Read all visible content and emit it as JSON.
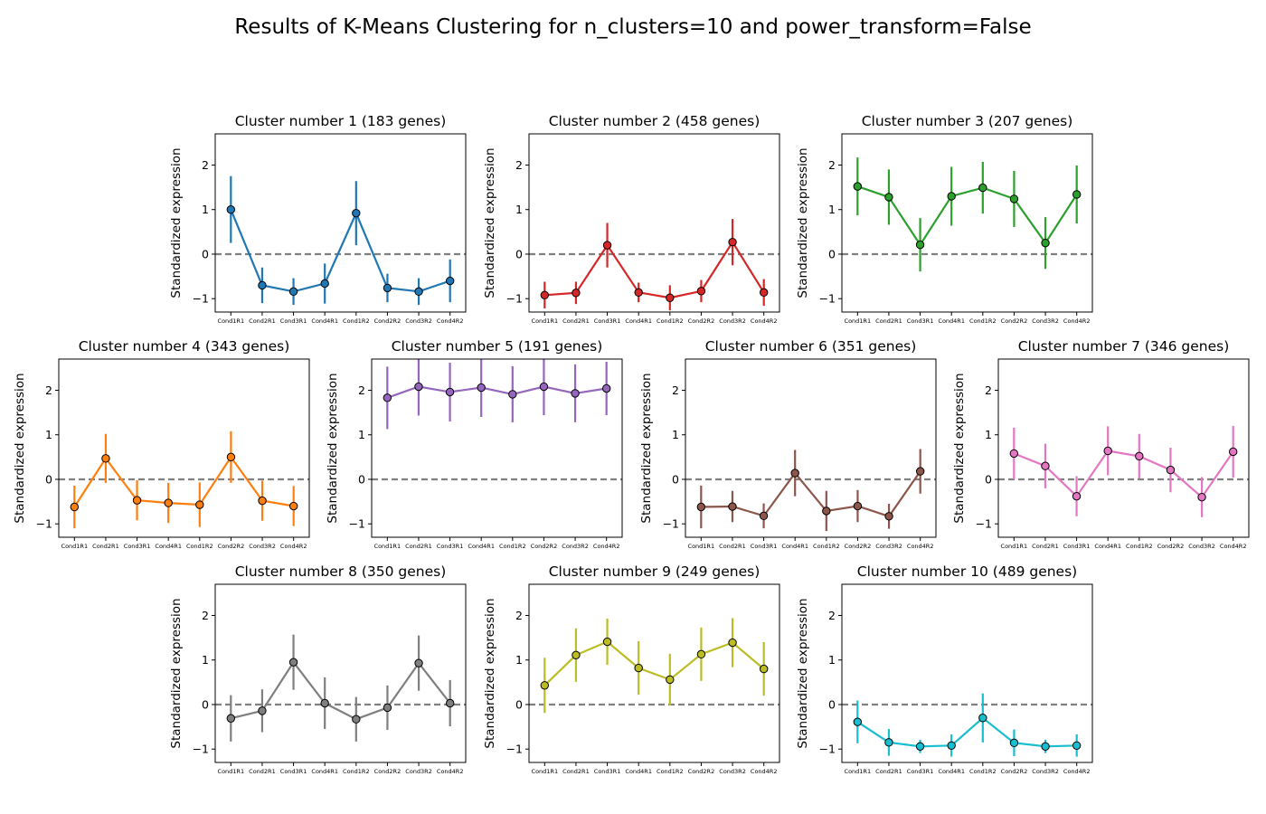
{
  "figure": {
    "title": "Results of K-Means Clustering for n_clusters=10 and power_transform=False"
  },
  "chart_data": [
    {
      "type": "line",
      "title": "Cluster number 1 (183 genes)",
      "color": "#1f77b4",
      "ylabel": "Standardized expression",
      "categories": [
        "Cond1R1",
        "Cond2R1",
        "Cond3R1",
        "Cond4R1",
        "Cond1R2",
        "Cond2R2",
        "Cond3R2",
        "Cond4R2"
      ],
      "values": [
        1.0,
        -0.7,
        -0.84,
        -0.66,
        0.92,
        -0.76,
        -0.84,
        -0.6
      ],
      "error": [
        0.75,
        0.4,
        0.3,
        0.45,
        0.72,
        0.32,
        0.3,
        0.48
      ],
      "ylim": [
        -1.3,
        2.7
      ],
      "yticks": [
        -1,
        0,
        1,
        2
      ],
      "reference_line": 0
    },
    {
      "type": "line",
      "title": "Cluster number 2 (458 genes)",
      "color": "#d62728",
      "ylabel": "Standardized expression",
      "categories": [
        "Cond1R1",
        "Cond2R1",
        "Cond3R1",
        "Cond4R1",
        "Cond1R2",
        "Cond2R2",
        "Cond3R2",
        "Cond4R2"
      ],
      "values": [
        -0.92,
        -0.87,
        0.2,
        -0.86,
        -0.98,
        -0.83,
        0.27,
        -0.86
      ],
      "error": [
        0.3,
        0.25,
        0.5,
        0.22,
        0.28,
        0.25,
        0.52,
        0.3
      ],
      "ylim": [
        -1.3,
        2.7
      ],
      "yticks": [
        -1,
        0,
        1,
        2
      ],
      "reference_line": 0
    },
    {
      "type": "line",
      "title": "Cluster number 3 (207 genes)",
      "color": "#2ca02c",
      "ylabel": "Standardized expression",
      "categories": [
        "Cond1R1",
        "Cond2R1",
        "Cond3R1",
        "Cond4R1",
        "Cond1R2",
        "Cond2R2",
        "Cond3R2",
        "Cond4R2"
      ],
      "values": [
        1.52,
        1.28,
        0.21,
        1.3,
        1.49,
        1.24,
        0.25,
        1.34
      ],
      "error": [
        0.65,
        0.62,
        0.6,
        0.66,
        0.58,
        0.63,
        0.58,
        0.65
      ],
      "ylim": [
        -1.3,
        2.7
      ],
      "yticks": [
        -1,
        0,
        1,
        2
      ],
      "reference_line": 0
    },
    {
      "type": "line",
      "title": "Cluster number 4 (343 genes)",
      "color": "#ff7f0e",
      "ylabel": "Standardized expression",
      "categories": [
        "Cond1R1",
        "Cond2R1",
        "Cond3R1",
        "Cond4R1",
        "Cond1R2",
        "Cond2R2",
        "Cond3R2",
        "Cond4R2"
      ],
      "values": [
        -0.62,
        0.47,
        -0.47,
        -0.53,
        -0.57,
        0.5,
        -0.48,
        -0.6
      ],
      "error": [
        0.48,
        0.55,
        0.45,
        0.45,
        0.5,
        0.58,
        0.45,
        0.45
      ],
      "ylim": [
        -1.3,
        2.7
      ],
      "yticks": [
        -1,
        0,
        1,
        2
      ],
      "reference_line": 0
    },
    {
      "type": "line",
      "title": "Cluster number 5 (191 genes)",
      "color": "#9467bd",
      "ylabel": "Standardized expression",
      "categories": [
        "Cond1R1",
        "Cond2R1",
        "Cond3R1",
        "Cond4R1",
        "Cond1R2",
        "Cond2R2",
        "Cond3R2",
        "Cond4R2"
      ],
      "values": [
        1.83,
        2.08,
        1.96,
        2.06,
        1.91,
        2.08,
        1.93,
        2.04
      ],
      "error": [
        0.7,
        0.65,
        0.66,
        0.66,
        0.63,
        0.64,
        0.65,
        0.6
      ],
      "ylim": [
        -1.3,
        2.7
      ],
      "yticks": [
        -1,
        0,
        1,
        2
      ],
      "reference_line": 0
    },
    {
      "type": "line",
      "title": "Cluster number 6 (351 genes)",
      "color": "#8c564b",
      "ylabel": "Standardized expression",
      "categories": [
        "Cond1R1",
        "Cond2R1",
        "Cond3R1",
        "Cond4R1",
        "Cond1R2",
        "Cond2R2",
        "Cond3R2",
        "Cond4R2"
      ],
      "values": [
        -0.62,
        -0.61,
        -0.82,
        0.14,
        -0.71,
        -0.6,
        -0.83,
        0.18
      ],
      "error": [
        0.48,
        0.35,
        0.28,
        0.52,
        0.45,
        0.36,
        0.28,
        0.5
      ],
      "ylim": [
        -1.3,
        2.7
      ],
      "yticks": [
        -1,
        0,
        1,
        2
      ],
      "reference_line": 0
    },
    {
      "type": "line",
      "title": "Cluster number 7 (346 genes)",
      "color": "#e377c2",
      "ylabel": "Standardized expression",
      "categories": [
        "Cond1R1",
        "Cond2R1",
        "Cond3R1",
        "Cond4R1",
        "Cond1R2",
        "Cond2R2",
        "Cond3R2",
        "Cond4R2"
      ],
      "values": [
        0.58,
        0.3,
        -0.38,
        0.64,
        0.52,
        0.21,
        -0.4,
        0.62
      ],
      "error": [
        0.58,
        0.5,
        0.45,
        0.55,
        0.5,
        0.5,
        0.45,
        0.58
      ],
      "ylim": [
        -1.3,
        2.7
      ],
      "yticks": [
        -1,
        0,
        1,
        2
      ],
      "reference_line": 0
    },
    {
      "type": "line",
      "title": "Cluster number 8 (350 genes)",
      "color": "#7f7f7f",
      "ylabel": "Standardized expression",
      "categories": [
        "Cond1R1",
        "Cond2R1",
        "Cond3R1",
        "Cond4R1",
        "Cond1R2",
        "Cond2R2",
        "Cond3R2",
        "Cond4R2"
      ],
      "values": [
        -0.31,
        -0.14,
        0.95,
        0.03,
        -0.33,
        -0.07,
        0.93,
        0.03
      ],
      "error": [
        0.52,
        0.48,
        0.62,
        0.58,
        0.5,
        0.5,
        0.62,
        0.52
      ],
      "ylim": [
        -1.3,
        2.7
      ],
      "yticks": [
        -1,
        0,
        1,
        2
      ],
      "reference_line": 0
    },
    {
      "type": "line",
      "title": "Cluster number 9 (249 genes)",
      "color": "#bcbd22",
      "ylabel": "Standardized expression",
      "categories": [
        "Cond1R1",
        "Cond2R1",
        "Cond3R1",
        "Cond4R1",
        "Cond1R2",
        "Cond2R2",
        "Cond3R2",
        "Cond4R2"
      ],
      "values": [
        0.43,
        1.11,
        1.41,
        0.82,
        0.56,
        1.13,
        1.39,
        0.8
      ],
      "error": [
        0.62,
        0.6,
        0.52,
        0.6,
        0.58,
        0.6,
        0.55,
        0.6
      ],
      "ylim": [
        -1.3,
        2.7
      ],
      "yticks": [
        -1,
        0,
        1,
        2
      ],
      "reference_line": 0
    },
    {
      "type": "line",
      "title": "Cluster number 10 (489 genes)",
      "color": "#17becf",
      "ylabel": "Standardized expression",
      "categories": [
        "Cond1R1",
        "Cond2R1",
        "Cond3R1",
        "Cond4R1",
        "Cond1R2",
        "Cond2R2",
        "Cond3R2",
        "Cond4R2"
      ],
      "values": [
        -0.39,
        -0.85,
        -0.94,
        -0.92,
        -0.3,
        -0.86,
        -0.94,
        -0.92
      ],
      "error": [
        0.48,
        0.3,
        0.15,
        0.25,
        0.55,
        0.3,
        0.15,
        0.25
      ],
      "ylim": [
        -1.3,
        2.7
      ],
      "yticks": [
        -1,
        0,
        1,
        2
      ],
      "reference_line": 0
    }
  ]
}
